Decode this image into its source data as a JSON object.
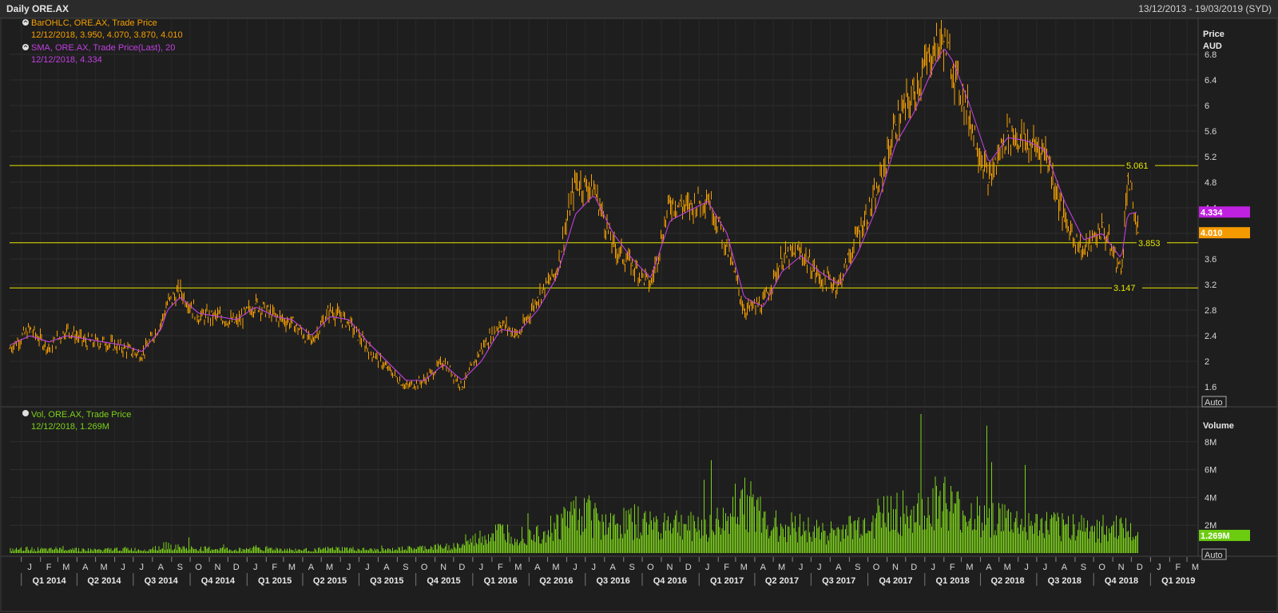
{
  "header": {
    "title": "Daily ORE.AX",
    "date_range": "13/12/2013 - 19/03/2019 (SYD)"
  },
  "colors": {
    "price": "#f5a000",
    "sma": "#c040e0",
    "volume": "#7cd11a",
    "level": "#e6e600",
    "sma_badge": "#c020e0",
    "price_badge": "#f59a00",
    "volume_badge": "#6ccc10"
  },
  "price_panel": {
    "legend": [
      {
        "icon": "info-icon",
        "line1": "BarOHLC, ORE.AX, Trade Price",
        "line2": "12/12/2018, 3.950, 4.070, 3.870, 4.010",
        "color": "#f5a000"
      },
      {
        "icon": "info-icon",
        "line1": "SMA, ORE.AX, Trade Price(Last),  20",
        "line2": "12/12/2018, 4.334",
        "color": "#c040e0"
      }
    ],
    "axis_title": "Price",
    "axis_unit": "AUD",
    "ticks": [
      "1.6",
      "2",
      "2.4",
      "2.8",
      "3.2",
      "3.6",
      "4",
      "4.4",
      "4.8",
      "5.2",
      "5.6",
      "6",
      "6.4",
      "6.8"
    ],
    "auto_label": "Auto",
    "sma_badge": "4.334",
    "price_badge": "4.010"
  },
  "volume_panel": {
    "legend": {
      "icon": "info-icon",
      "line1": "Vol, ORE.AX, Trade Price",
      "line2": "12/12/2018, 1.269M",
      "color": "#7cd11a"
    },
    "axis_title": "Volume",
    "ticks": [
      "2M",
      "4M",
      "6M",
      "8M"
    ],
    "auto_label": "Auto",
    "badge": "1.269M"
  },
  "x_axis": {
    "months": [
      "J",
      "F",
      "M",
      "A",
      "M",
      "J",
      "J",
      "A",
      "S",
      "O",
      "N",
      "D",
      "J",
      "F",
      "M",
      "A",
      "M",
      "J",
      "J",
      "A",
      "S",
      "O",
      "N",
      "D",
      "J",
      "F",
      "M",
      "A",
      "M",
      "J",
      "J",
      "A",
      "S",
      "O",
      "N",
      "D",
      "J",
      "F",
      "M",
      "A",
      "M",
      "J",
      "J",
      "A",
      "S",
      "O",
      "N",
      "D",
      "J",
      "F",
      "M",
      "A",
      "M",
      "J",
      "J",
      "A",
      "S",
      "O",
      "N",
      "D",
      "J",
      "F",
      "M"
    ],
    "quarters": [
      "Q1 2014",
      "Q2 2014",
      "Q3 2014",
      "Q4 2014",
      "Q1 2015",
      "Q2 2015",
      "Q3 2015",
      "Q4 2015",
      "Q1 2016",
      "Q2 2016",
      "Q3 2016",
      "Q4 2016",
      "Q1 2017",
      "Q2 2017",
      "Q3 2017",
      "Q4 2017",
      "Q1 2018",
      "Q2 2018",
      "Q3 2018",
      "Q4 2018",
      "Q1 2019"
    ]
  },
  "chart_data": {
    "type": "line",
    "title": "Daily ORE.AX",
    "x_range": [
      "2013-12-13",
      "2019-03-19"
    ],
    "ylabel": "Price AUD",
    "ylim": [
      1.3,
      7.3
    ],
    "horizontal_levels": [
      {
        "value": 5.061,
        "label": "5.061"
      },
      {
        "value": 3.853,
        "label": "3.853"
      },
      {
        "value": 3.147,
        "label": "3.147"
      }
    ],
    "x": [
      "2013-12-13",
      "2014-01-15",
      "2014-02-15",
      "2014-03-15",
      "2014-04-15",
      "2014-05-15",
      "2014-06-15",
      "2014-07-15",
      "2014-08-15",
      "2014-08-25",
      "2014-09-15",
      "2014-10-15",
      "2014-11-15",
      "2014-12-15",
      "2015-01-15",
      "2015-02-15",
      "2015-03-15",
      "2015-04-15",
      "2015-05-15",
      "2015-06-15",
      "2015-07-15",
      "2015-08-15",
      "2015-09-15",
      "2015-10-15",
      "2015-11-15",
      "2015-12-15",
      "2016-01-15",
      "2016-02-15",
      "2016-03-15",
      "2016-04-15",
      "2016-05-15",
      "2016-06-15",
      "2016-07-15",
      "2016-08-15",
      "2016-09-15",
      "2016-10-15",
      "2016-11-15",
      "2016-12-15",
      "2017-01-15",
      "2017-02-15",
      "2017-03-15",
      "2017-04-15",
      "2017-05-15",
      "2017-06-15",
      "2017-07-15",
      "2017-08-15",
      "2017-09-15",
      "2017-10-15",
      "2017-11-15",
      "2017-12-15",
      "2018-01-15",
      "2018-02-01",
      "2018-02-15",
      "2018-03-15",
      "2018-04-15",
      "2018-05-15",
      "2018-06-15",
      "2018-07-15",
      "2018-08-15",
      "2018-09-15",
      "2018-10-15",
      "2018-11-15",
      "2018-11-25",
      "2018-12-12"
    ],
    "series": [
      {
        "name": "BarOHLC, ORE.AX, Trade Price",
        "values": [
          2.2,
          2.5,
          2.2,
          2.5,
          2.3,
          2.3,
          2.2,
          2.1,
          2.6,
          2.9,
          3.1,
          2.7,
          2.7,
          2.6,
          2.9,
          2.7,
          2.6,
          2.3,
          2.8,
          2.6,
          2.2,
          1.9,
          1.6,
          1.7,
          2.0,
          1.6,
          2.2,
          2.6,
          2.4,
          3.0,
          3.4,
          4.8,
          4.7,
          3.8,
          3.5,
          3.2,
          4.5,
          4.4,
          4.6,
          3.8,
          2.8,
          2.9,
          3.6,
          3.7,
          3.3,
          3.2,
          4.0,
          4.6,
          5.7,
          6.2,
          6.9,
          7.0,
          6.6,
          5.8,
          4.8,
          5.6,
          5.4,
          5.3,
          4.2,
          3.7,
          4.1,
          3.4,
          4.9,
          4.01
        ]
      },
      {
        "name": "SMA, ORE.AX, Trade Price(Last),  20",
        "values": [
          2.25,
          2.4,
          2.3,
          2.4,
          2.35,
          2.3,
          2.25,
          2.15,
          2.5,
          2.8,
          3.0,
          2.75,
          2.7,
          2.65,
          2.85,
          2.7,
          2.65,
          2.4,
          2.7,
          2.65,
          2.3,
          2.0,
          1.7,
          1.7,
          1.95,
          1.7,
          2.0,
          2.5,
          2.45,
          2.8,
          3.3,
          4.3,
          4.6,
          4.0,
          3.6,
          3.3,
          4.2,
          4.35,
          4.5,
          4.0,
          3.0,
          2.85,
          3.4,
          3.65,
          3.4,
          3.2,
          3.7,
          4.4,
          5.4,
          5.9,
          6.6,
          6.9,
          6.7,
          6.0,
          5.1,
          5.5,
          5.45,
          5.3,
          4.5,
          3.9,
          4.0,
          3.6,
          4.3,
          4.334
        ]
      }
    ],
    "volume": {
      "name": "Vol, ORE.AX, Trade Price",
      "unit": "M",
      "ylim": [
        0,
        10
      ],
      "last": 1.269,
      "values": [
        0.3,
        0.4,
        0.3,
        0.5,
        0.3,
        0.3,
        0.4,
        0.3,
        0.6,
        0.7,
        0.5,
        0.4,
        0.4,
        0.3,
        0.5,
        0.4,
        0.3,
        0.3,
        0.4,
        0.4,
        0.3,
        0.3,
        0.4,
        0.5,
        0.6,
        0.7,
        1.5,
        2.0,
        1.8,
        2.0,
        2.5,
        4.0,
        3.5,
        2.5,
        3.0,
        2.5,
        3.0,
        2.5,
        2.6,
        3.0,
        5.5,
        3.0,
        2.5,
        2.5,
        2.0,
        2.0,
        2.5,
        3.5,
        4.0,
        3.5,
        4.5,
        5.0,
        4.0,
        3.5,
        3.5,
        3.0,
        2.5,
        2.5,
        2.5,
        2.5,
        2.2,
        2.4,
        2.0,
        1.269
      ]
    }
  }
}
